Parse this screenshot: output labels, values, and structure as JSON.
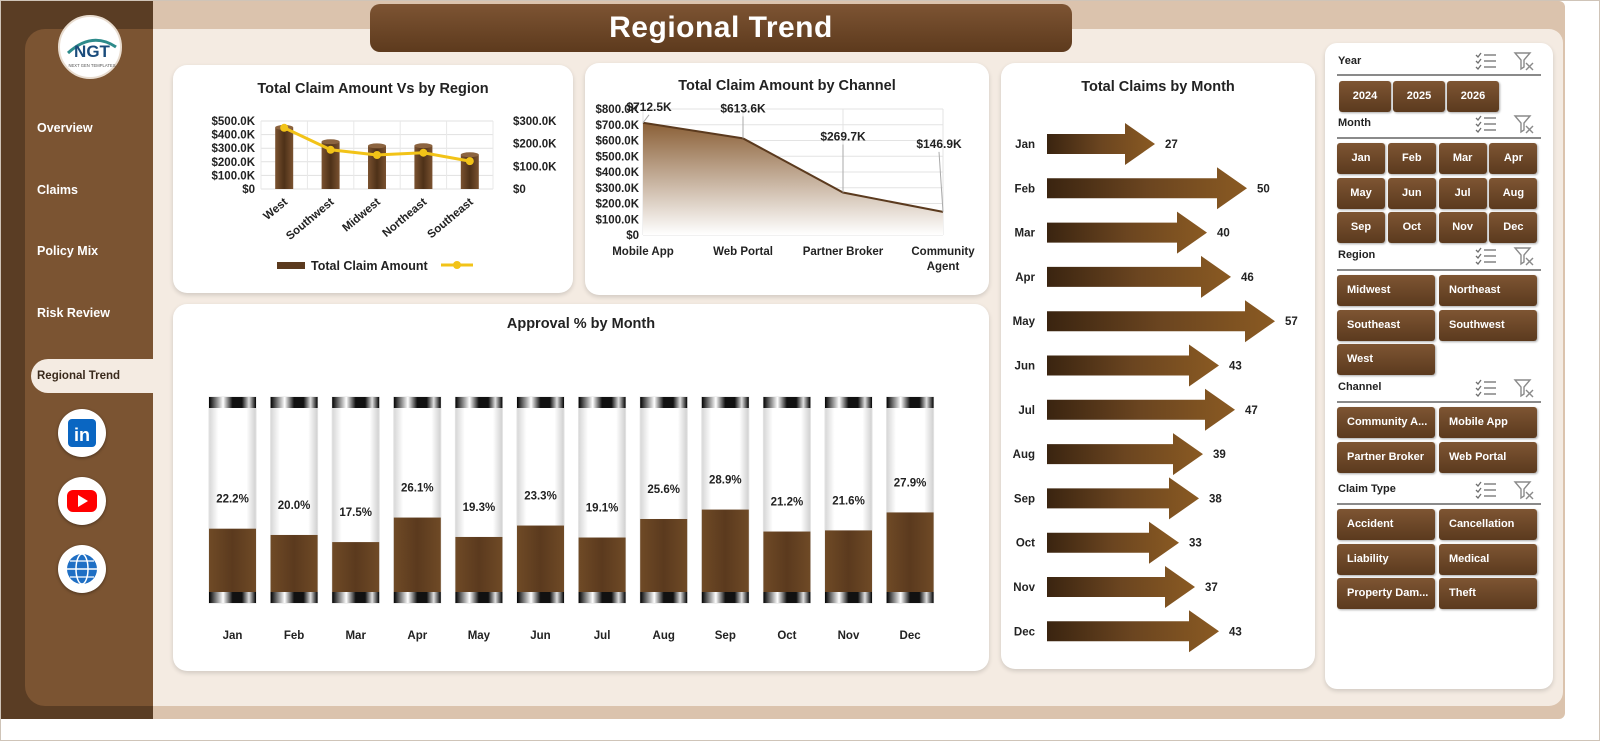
{
  "page": {
    "title": "Regional Trend"
  },
  "logo": {
    "text": "NGT",
    "tagline": "NEXT GEN TEMPLATES"
  },
  "nav": [
    {
      "label": "Overview"
    },
    {
      "label": "Claims"
    },
    {
      "label": "Policy Mix"
    },
    {
      "label": "Risk Review"
    },
    {
      "label": "Regional Trend",
      "active": true
    }
  ],
  "social": [
    {
      "name": "linkedin-icon",
      "color": "#0a66c2",
      "glyph": "in"
    },
    {
      "name": "youtube-icon",
      "color": "#ff0000"
    },
    {
      "name": "globe-icon",
      "color": "#1f6fc4"
    }
  ],
  "chart_data": [
    {
      "type": "bar",
      "title": "Total Claim Amount Vs  by Region",
      "categories": [
        "West",
        "Southwest",
        "Midwest",
        "Northeast",
        "Southeast"
      ],
      "series": [
        {
          "name": "Total Claim Amount",
          "values": [
            452000,
            347000,
            317000,
            318000,
            252000
          ],
          "axis": "left"
        },
        {
          "name": "",
          "type": "line",
          "values": [
            270000,
            173000,
            150000,
            160000,
            123000
          ],
          "axis": "right"
        }
      ],
      "y_ticks_left": [
        "$0",
        "$100.0K",
        "$200.0K",
        "$300.0K",
        "$400.0K",
        "$500.0K"
      ],
      "y_ticks_right": [
        "$0",
        "$100.0K",
        "$200.0K",
        "$300.0K"
      ],
      "ylim_left": [
        0,
        500000
      ],
      "ylim_right": [
        0,
        300000
      ],
      "legend": "bottom",
      "colors": {
        "bar": "#5b3a1e",
        "line": "#f2c318"
      }
    },
    {
      "type": "area",
      "title": "Total Claim Amount by Channel",
      "categories": [
        "Mobile App",
        "Web Portal",
        "Partner Broker",
        "Community Agent"
      ],
      "category_lines": [
        [
          "Mobile App"
        ],
        [
          "Web Portal"
        ],
        [
          "Partner Broker"
        ],
        [
          "Community",
          "Agent"
        ]
      ],
      "values": [
        712500,
        613600,
        269700,
        146900
      ],
      "data_labels": [
        "$712.5K",
        "$613.6K",
        "$269.7K",
        "$146.9K"
      ],
      "y_ticks": [
        "$0",
        "$100.0K",
        "$200.0K",
        "$300.0K",
        "$400.0K",
        "$500.0K",
        "$600.0K",
        "$700.0K",
        "$800.0K"
      ],
      "ylim": [
        0,
        800000
      ]
    },
    {
      "type": "bar",
      "title": "Approval % by Month",
      "categories": [
        "Jan",
        "Feb",
        "Mar",
        "Apr",
        "May",
        "Jun",
        "Jul",
        "Aug",
        "Sep",
        "Oct",
        "Nov",
        "Dec"
      ],
      "values": [
        22.2,
        20.0,
        17.5,
        26.1,
        19.3,
        23.3,
        19.1,
        25.6,
        28.9,
        21.2,
        21.6,
        27.9
      ],
      "data_labels": [
        "22.2%",
        "20.0%",
        "17.5%",
        "26.1%",
        "19.3%",
        "23.3%",
        "19.1%",
        "25.6%",
        "28.9%",
        "21.2%",
        "21.6%",
        "27.9%"
      ],
      "ylim": [
        0,
        100
      ]
    },
    {
      "type": "bar",
      "orientation": "horizontal",
      "title": "Total Claims by Month",
      "categories": [
        "Jan",
        "Feb",
        "Mar",
        "Apr",
        "May",
        "Jun",
        "Jul",
        "Aug",
        "Sep",
        "Oct",
        "Nov",
        "Dec"
      ],
      "values": [
        27,
        50,
        40,
        46,
        57,
        43,
        47,
        39,
        38,
        33,
        37,
        43
      ]
    }
  ],
  "slicers": [
    {
      "title": "Year",
      "items": [
        "2024",
        "2025",
        "2026"
      ]
    },
    {
      "title": "Month",
      "items": [
        "Jan",
        "Feb",
        "Mar",
        "Apr",
        "May",
        "Jun",
        "Jul",
        "Aug",
        "Sep",
        "Oct",
        "Nov",
        "Dec"
      ]
    },
    {
      "title": "Region",
      "items": [
        "Midwest",
        "Northeast",
        "Southeast",
        "Southwest",
        "West"
      ]
    },
    {
      "title": "Channel",
      "items": [
        "Community A...",
        "Mobile App",
        "Partner Broker",
        "Web Portal"
      ]
    },
    {
      "title": "Claim Type",
      "items": [
        "Accident",
        "Cancellation",
        "Liability",
        "Medical",
        "Property Dam...",
        "Theft"
      ]
    }
  ]
}
